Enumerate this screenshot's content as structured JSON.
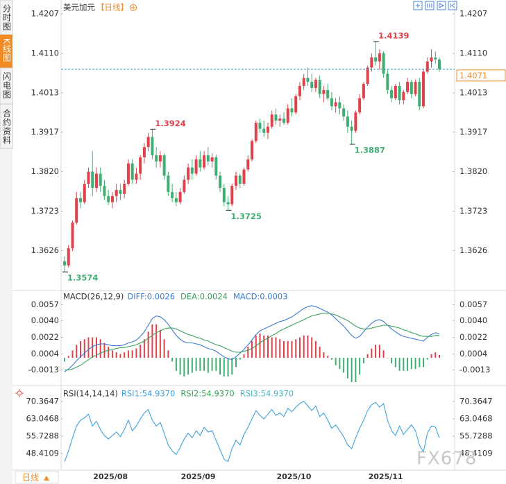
{
  "header": {
    "symbol": "美元加元",
    "period": "【日线】"
  },
  "sidebar_tabs": [
    "分时图",
    "K线图",
    "闪电图",
    "合约资料"
  ],
  "period_button": "日线",
  "watermark": "FX678",
  "chart_data": [
    {
      "type": "candlestick",
      "up_color": "#e0424b",
      "down_color": "#3fae72",
      "ylim": [
        1.353,
        1.4217
      ],
      "yticks": [
        1.3626,
        1.3723,
        {
          "value": 1.382,
          "label": "1.3820"
        },
        1.3917,
        1.4013,
        {
          "value": 1.411,
          "label": "1.4110"
        },
        1.4207
      ],
      "last_price": 1.4071,
      "annotations": [
        1.3574,
        1.3924,
        1.3725,
        1.3887,
        1.4139
      ],
      "categories": [
        null,
        null,
        null,
        null,
        null,
        null,
        null,
        null,
        null,
        null,
        null,
        "2025/08",
        null,
        null,
        null,
        null,
        null,
        null,
        null,
        null,
        null,
        null,
        null,
        null,
        null,
        null,
        null,
        null,
        null,
        null,
        null,
        null,
        null,
        "2025/09",
        null,
        null,
        null,
        null,
        null,
        null,
        null,
        null,
        null,
        null,
        null,
        null,
        null,
        null,
        null,
        null,
        null,
        null,
        null,
        null,
        null,
        null,
        null,
        "2025/10",
        null,
        null,
        null,
        null,
        null,
        null,
        null,
        null,
        null,
        null,
        null,
        null,
        null,
        null,
        null,
        null,
        null,
        null,
        null,
        null,
        null,
        null,
        "2025/11",
        null,
        null,
        null,
        null,
        null,
        null,
        null,
        null,
        null,
        null,
        null,
        null,
        null,
        null
      ],
      "candles": [
        [
          1.36,
          1.3612,
          1.3574,
          1.359
        ],
        [
          1.359,
          1.364,
          1.3585,
          1.3632
        ],
        [
          1.3632,
          1.37,
          1.3625,
          1.3695
        ],
        [
          1.3695,
          1.377,
          1.369,
          1.3755
        ],
        [
          1.3755,
          1.377,
          1.373,
          1.3745
        ],
        [
          1.3745,
          1.38,
          1.374,
          1.379
        ],
        [
          1.379,
          1.383,
          1.378,
          1.382
        ],
        [
          1.382,
          1.387,
          1.376,
          1.378
        ],
        [
          1.378,
          1.383,
          1.377,
          1.3815
        ],
        [
          1.3815,
          1.383,
          1.377,
          1.3785
        ],
        [
          1.3785,
          1.38,
          1.375,
          1.376
        ],
        [
          1.376,
          1.3775,
          1.3738,
          1.3745
        ],
        [
          1.3745,
          1.377,
          1.373,
          1.376
        ],
        [
          1.376,
          1.379,
          1.3745,
          1.3775
        ],
        [
          1.3775,
          1.379,
          1.375,
          1.3765
        ],
        [
          1.3765,
          1.38,
          1.3755,
          1.379
        ],
        [
          1.379,
          1.385,
          1.3785,
          1.384
        ],
        [
          1.384,
          1.385,
          1.379,
          1.38
        ],
        [
          1.38,
          1.383,
          1.379,
          1.3815
        ],
        [
          1.3815,
          1.386,
          1.38,
          1.3855
        ],
        [
          1.3855,
          1.389,
          1.384,
          1.388
        ],
        [
          1.388,
          1.3915,
          1.387,
          1.3905
        ],
        [
          1.3905,
          1.3924,
          1.385,
          1.386
        ],
        [
          1.386,
          1.388,
          1.383,
          1.3845
        ],
        [
          1.3845,
          1.387,
          1.383,
          1.386
        ],
        [
          1.386,
          1.3865,
          1.38,
          1.381
        ],
        [
          1.381,
          1.382,
          1.376,
          1.377
        ],
        [
          1.377,
          1.379,
          1.3745,
          1.3755
        ],
        [
          1.3755,
          1.377,
          1.3735,
          1.3745
        ],
        [
          1.3745,
          1.378,
          1.374,
          1.377
        ],
        [
          1.377,
          1.381,
          1.3765,
          1.38
        ],
        [
          1.38,
          1.384,
          1.379,
          1.383
        ],
        [
          1.383,
          1.385,
          1.38,
          1.3815
        ],
        [
          1.3815,
          1.386,
          1.381,
          1.385
        ],
        [
          1.385,
          1.387,
          1.382,
          1.383
        ],
        [
          1.383,
          1.387,
          1.3825,
          1.386
        ],
        [
          1.386,
          1.388,
          1.3835,
          1.3845
        ],
        [
          1.3845,
          1.3865,
          1.383,
          1.3855
        ],
        [
          1.3855,
          1.3862,
          1.38,
          1.381
        ],
        [
          1.381,
          1.382,
          1.377,
          1.378
        ],
        [
          1.378,
          1.379,
          1.3735,
          1.3745
        ],
        [
          1.3745,
          1.376,
          1.3725,
          1.374
        ],
        [
          1.374,
          1.379,
          1.3735,
          1.3785
        ],
        [
          1.3785,
          1.382,
          1.3775,
          1.381
        ],
        [
          1.381,
          1.3815,
          1.378,
          1.379
        ],
        [
          1.379,
          1.383,
          1.3785,
          1.3825
        ],
        [
          1.3825,
          1.386,
          1.382,
          1.385
        ],
        [
          1.385,
          1.39,
          1.3845,
          1.3895
        ],
        [
          1.3895,
          1.3945,
          1.389,
          1.394
        ],
        [
          1.394,
          1.395,
          1.3915,
          1.3925
        ],
        [
          1.3925,
          1.3945,
          1.3905,
          1.3915
        ],
        [
          1.3915,
          1.394,
          1.39,
          1.393
        ],
        [
          1.393,
          1.397,
          1.3925,
          1.396
        ],
        [
          1.396,
          1.3975,
          1.3935,
          1.3945
        ],
        [
          1.3945,
          1.396,
          1.393,
          1.395
        ],
        [
          1.395,
          1.3965,
          1.3935,
          1.394
        ],
        [
          1.394,
          1.3985,
          1.3935,
          1.3975
        ],
        [
          1.3975,
          1.4,
          1.3955,
          1.3965
        ],
        [
          1.3965,
          1.401,
          1.396,
          1.4005
        ],
        [
          1.4005,
          1.404,
          1.3995,
          1.403
        ],
        [
          1.403,
          1.406,
          1.402,
          1.405
        ],
        [
          1.405,
          1.4075,
          1.403,
          1.404
        ],
        [
          1.404,
          1.406,
          1.4015,
          1.4025
        ],
        [
          1.4025,
          1.405,
          1.4015,
          1.4045
        ],
        [
          1.4045,
          1.4055,
          1.4,
          1.401
        ],
        [
          1.401,
          1.403,
          1.399,
          1.402
        ],
        [
          1.402,
          1.4035,
          1.3995,
          1.4
        ],
        [
          1.4,
          1.4015,
          1.397,
          1.398
        ],
        [
          1.398,
          1.4,
          1.3965,
          1.399
        ],
        [
          1.399,
          1.4005,
          1.396,
          1.3975
        ],
        [
          1.3975,
          1.3985,
          1.3945,
          1.3955
        ],
        [
          1.3955,
          1.397,
          1.3915,
          1.393
        ],
        [
          1.393,
          1.3945,
          1.3887,
          1.392
        ],
        [
          1.392,
          1.397,
          1.3915,
          1.3965
        ],
        [
          1.3965,
          1.401,
          1.396,
          1.4
        ],
        [
          1.4,
          1.404,
          1.3995,
          1.4035
        ],
        [
          1.4035,
          1.408,
          1.403,
          1.4075
        ],
        [
          1.4075,
          1.411,
          1.4065,
          1.41
        ],
        [
          1.41,
          1.4139,
          1.408,
          1.409
        ],
        [
          1.409,
          1.412,
          1.407,
          1.411
        ],
        [
          1.411,
          1.4115,
          1.405,
          1.406
        ],
        [
          1.406,
          1.407,
          1.401,
          1.402
        ],
        [
          1.402,
          1.403,
          1.399,
          1.4
        ],
        [
          1.4,
          1.4035,
          1.3995,
          1.403
        ],
        [
          1.403,
          1.404,
          1.3985,
          1.3995
        ],
        [
          1.3995,
          1.402,
          1.3985,
          1.4015
        ],
        [
          1.4015,
          1.405,
          1.401,
          1.404
        ],
        [
          1.404,
          1.4045,
          1.4,
          1.401
        ],
        [
          1.401,
          1.4045,
          1.4005,
          1.404
        ],
        [
          1.404,
          1.405,
          1.397,
          1.398
        ],
        [
          1.398,
          1.407,
          1.3975,
          1.4065
        ],
        [
          1.4065,
          1.41,
          1.406,
          1.409
        ],
        [
          1.409,
          1.412,
          1.4075,
          1.41
        ],
        [
          1.41,
          1.4115,
          1.4085,
          1.4095
        ],
        [
          1.4095,
          1.41,
          1.4065,
          1.4071
        ]
      ]
    },
    {
      "type": "macd",
      "title": "MACD(26,12,9)",
      "up_color": "#e0424b",
      "down_color": "#3fae72",
      "ylim": [
        -0.0029,
        0.007
      ],
      "yticks": [
        -0.0013,
        0.0004,
        0.0022,
        {
          "value": 0.004,
          "label": "0.0040"
        },
        0.0057
      ],
      "series": [
        {
          "label": "DIFF:0.0026",
          "color": "#3a7bd5",
          "style": "line",
          "values": [
            -0.0015,
            -0.0012,
            -0.0008,
            -0.0003,
            0.0001,
            0.0005,
            0.0009,
            0.0012,
            0.0014,
            0.0015,
            0.0015,
            0.0014,
            0.0013,
            0.0013,
            0.0013,
            0.0014,
            0.0016,
            0.0017,
            0.0019,
            0.0023,
            0.0028,
            0.0035,
            0.0042,
            0.0045,
            0.0044,
            0.0041,
            0.0036,
            0.003,
            0.0024,
            0.002,
            0.0017,
            0.0016,
            0.0016,
            0.0015,
            0.0014,
            0.0012,
            0.001,
            0.0009,
            0.0007,
            0.0004,
            0.0001,
            -0.0001,
            -0.0002,
            0.0001,
            0.0005,
            0.0009,
            0.0014,
            0.0019,
            0.0025,
            0.0029,
            0.0031,
            0.0033,
            0.0035,
            0.0037,
            0.0039,
            0.004,
            0.0042,
            0.0044,
            0.0047,
            0.005,
            0.0053,
            0.0055,
            0.0056,
            0.0055,
            0.0053,
            0.0051,
            0.0049,
            0.0046,
            0.0042,
            0.0038,
            0.0034,
            0.0029,
            0.0024,
            0.0021,
            0.0023,
            0.0028,
            0.0033,
            0.0037,
            0.004,
            0.0041,
            0.0039,
            0.0035,
            0.0031,
            0.0028,
            0.0025,
            0.0023,
            0.0022,
            0.0021,
            0.002,
            0.0019,
            0.0018,
            0.0022,
            0.0025,
            0.0027,
            0.0026
          ]
        },
        {
          "label": "DEA:0.0024",
          "color": "#3aa05a",
          "style": "line",
          "values": [
            -0.0013,
            -0.0013,
            -0.0012,
            -0.001,
            -0.0008,
            -0.0005,
            -0.0002,
            0.0001,
            0.0003,
            0.0005,
            0.0007,
            0.0008,
            0.0009,
            0.001,
            0.0011,
            0.0011,
            0.0012,
            0.0013,
            0.0014,
            0.0016,
            0.0018,
            0.0021,
            0.0024,
            0.0027,
            0.0029,
            0.0031,
            0.0032,
            0.0032,
            0.0031,
            0.0029,
            0.0027,
            0.0025,
            0.0024,
            0.0022,
            0.0021,
            0.0019,
            0.0018,
            0.0016,
            0.0014,
            0.0013,
            0.0011,
            0.0009,
            0.0007,
            0.0006,
            0.0006,
            0.0007,
            0.0008,
            0.001,
            0.0013,
            0.0016,
            0.0019,
            0.0021,
            0.0024,
            0.0026,
            0.0029,
            0.0031,
            0.0033,
            0.0035,
            0.0037,
            0.0039,
            0.0041,
            0.0043,
            0.0045,
            0.0046,
            0.0047,
            0.0048,
            0.0048,
            0.0047,
            0.0046,
            0.0044,
            0.0042,
            0.004,
            0.0037,
            0.0034,
            0.0032,
            0.0031,
            0.0031,
            0.0032,
            0.0033,
            0.0034,
            0.0035,
            0.0035,
            0.0034,
            0.0033,
            0.0032,
            0.003,
            0.0029,
            0.0027,
            0.0026,
            0.0024,
            0.0023,
            0.0023,
            0.0023,
            0.0024,
            0.0024
          ]
        },
        {
          "label": "MACD:0.0003",
          "color": "#3a7bd5",
          "style": "histogram",
          "values": [
            -0.0004,
            0.0002,
            0.0008,
            0.0014,
            0.0018,
            0.002,
            0.0022,
            0.0022,
            0.0022,
            0.002,
            0.0016,
            0.0012,
            0.0008,
            0.0006,
            0.0004,
            0.0006,
            0.0008,
            0.0008,
            0.001,
            0.0014,
            0.002,
            0.0028,
            0.0036,
            0.0036,
            0.003,
            0.002,
            0.0008,
            -0.0004,
            -0.0014,
            -0.0018,
            -0.002,
            -0.0018,
            -0.0016,
            -0.0014,
            -0.0014,
            -0.0014,
            -0.0016,
            -0.0014,
            -0.0014,
            -0.0018,
            -0.002,
            -0.002,
            -0.0018,
            -0.001,
            -0.0002,
            0.0004,
            0.0012,
            0.0018,
            0.0024,
            0.0026,
            0.0024,
            0.0024,
            0.0022,
            0.0022,
            0.002,
            0.0018,
            0.0018,
            0.0018,
            0.002,
            0.0022,
            0.0024,
            0.0024,
            0.0022,
            0.0018,
            0.0012,
            0.0006,
            0.0002,
            -0.0002,
            -0.0008,
            -0.0012,
            -0.0016,
            -0.0022,
            -0.0026,
            -0.0026,
            -0.0018,
            -0.0006,
            0.0004,
            0.001,
            0.0014,
            0.0014,
            0.0008,
            0,
            -0.0006,
            -0.001,
            -0.0014,
            -0.0014,
            -0.0014,
            -0.0012,
            -0.0012,
            -0.001,
            -0.001,
            -0.0002,
            0.0004,
            0.0006,
            0.0003
          ]
        }
      ]
    },
    {
      "type": "rsi",
      "title": "RSI(14,14,14)",
      "ylim": [
        40.8,
        75.93
      ],
      "yticks": [
        48.4109,
        55.7288,
        63.0468,
        70.3647
      ],
      "series": [
        {
          "label": "RSI1:54.9370",
          "color": "#3fa1dc",
          "values": [
            45,
            49.5,
            55,
            60,
            62.5,
            63.5,
            65,
            60,
            62,
            58.5,
            56,
            54.5,
            56,
            57.5,
            55.5,
            58.5,
            62.5,
            58,
            60,
            63,
            65.5,
            67,
            62.5,
            60,
            61.5,
            57,
            52,
            49.5,
            48,
            51,
            54.5,
            57,
            55,
            58,
            56,
            59.5,
            57.5,
            58,
            54,
            50,
            46,
            45,
            50.5,
            54,
            52,
            56.5,
            59.5,
            63,
            66.5,
            64.5,
            63,
            65,
            67,
            64.5,
            65.5,
            64,
            67.5,
            66,
            68,
            69.5,
            70.5,
            68.5,
            66.5,
            68.5,
            64,
            65.5,
            62.5,
            59,
            60.5,
            58,
            55.5,
            52,
            50.5,
            55,
            59,
            62.5,
            66.5,
            69,
            70,
            68,
            69.5,
            62.5,
            58,
            56,
            60,
            56.5,
            58.5,
            60.5,
            58,
            52,
            49,
            57,
            60,
            59.5,
            54.937
          ]
        },
        {
          "label": "RSI2:54.9370",
          "color": "#3aa05a"
        },
        {
          "label": "RSI3:54.9370",
          "color": "#3fb8c8"
        }
      ]
    }
  ]
}
